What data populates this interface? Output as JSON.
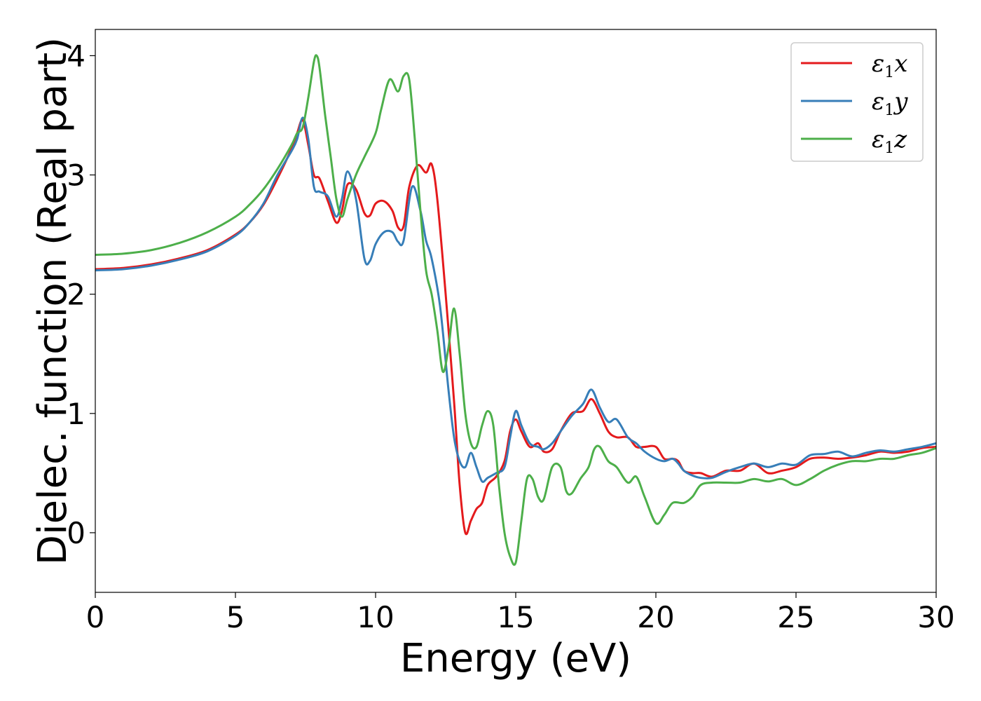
{
  "chart_data": {
    "type": "line",
    "title": "",
    "xlabel": "Energy (eV)",
    "ylabel": "Dielec. function (Real part)",
    "xlim": [
      0,
      30
    ],
    "ylim": [
      -0.5,
      4.22
    ],
    "xticks": [
      0,
      5,
      10,
      15,
      20,
      25,
      30
    ],
    "yticks": [
      0,
      1,
      2,
      3,
      4
    ],
    "xtick_labels": [
      "0",
      "5",
      "10",
      "15",
      "20",
      "25",
      "30"
    ],
    "ytick_labels": [
      "0",
      "1",
      "2",
      "3",
      "4"
    ],
    "grid": false,
    "legend_position": "top-right",
    "series": [
      {
        "name_symbol": "ε",
        "name_sub": "1",
        "name_var": "x",
        "color": "#e41a1c",
        "x": [
          0,
          1,
          2,
          3,
          4,
          5,
          5.5,
          6,
          6.5,
          7,
          7.2,
          7.4,
          7.6,
          7.8,
          8.0,
          8.3,
          8.6,
          8.8,
          9.0,
          9.3,
          9.6,
          9.8,
          10.0,
          10.3,
          10.6,
          10.8,
          11.0,
          11.2,
          11.5,
          11.8,
          12.0,
          12.2,
          12.5,
          12.8,
          13.0,
          13.2,
          13.4,
          13.6,
          13.8,
          14.0,
          14.3,
          14.6,
          14.8,
          15.0,
          15.2,
          15.5,
          15.8,
          16.0,
          16.3,
          16.6,
          17.0,
          17.4,
          17.7,
          18.0,
          18.3,
          18.6,
          19.0,
          19.3,
          19.6,
          20.0,
          20.3,
          20.6,
          20.8,
          21.0,
          21.3,
          21.6,
          22.0,
          22.5,
          23.0,
          23.5,
          24.0,
          24.5,
          25.0,
          25.5,
          26.0,
          26.5,
          27.0,
          27.5,
          28.0,
          28.5,
          29.0,
          29.5,
          30.0
        ],
        "y": [
          2.21,
          2.22,
          2.25,
          2.3,
          2.37,
          2.5,
          2.6,
          2.75,
          2.97,
          3.22,
          3.35,
          3.46,
          3.25,
          3.0,
          2.97,
          2.78,
          2.6,
          2.7,
          2.92,
          2.88,
          2.68,
          2.66,
          2.76,
          2.78,
          2.7,
          2.56,
          2.57,
          2.9,
          3.08,
          3.02,
          3.09,
          2.8,
          2.0,
          1.1,
          0.4,
          0.0,
          0.1,
          0.2,
          0.25,
          0.4,
          0.47,
          0.6,
          0.85,
          0.95,
          0.85,
          0.72,
          0.75,
          0.68,
          0.7,
          0.85,
          1.0,
          1.02,
          1.12,
          1.0,
          0.85,
          0.8,
          0.8,
          0.72,
          0.72,
          0.72,
          0.62,
          0.62,
          0.6,
          0.52,
          0.5,
          0.5,
          0.47,
          0.52,
          0.52,
          0.58,
          0.5,
          0.52,
          0.55,
          0.62,
          0.63,
          0.62,
          0.63,
          0.65,
          0.68,
          0.67,
          0.68,
          0.71,
          0.72
        ]
      },
      {
        "name_symbol": "ε",
        "name_sub": "1",
        "name_var": "y",
        "color": "#377eb8",
        "x": [
          0,
          1,
          2,
          3,
          4,
          5,
          5.5,
          6,
          6.5,
          7,
          7.2,
          7.4,
          7.6,
          7.8,
          8.0,
          8.3,
          8.6,
          8.8,
          9.0,
          9.3,
          9.6,
          9.8,
          10.0,
          10.3,
          10.6,
          10.8,
          11.0,
          11.3,
          11.6,
          11.8,
          12.0,
          12.3,
          12.6,
          12.8,
          13.0,
          13.2,
          13.4,
          13.6,
          13.8,
          14.0,
          14.3,
          14.6,
          14.8,
          15.0,
          15.2,
          15.5,
          15.8,
          16.0,
          16.3,
          16.6,
          17.0,
          17.4,
          17.7,
          18.0,
          18.3,
          18.6,
          19.0,
          19.3,
          19.6,
          20.0,
          20.3,
          20.6,
          20.8,
          21.0,
          21.3,
          21.6,
          22.0,
          22.5,
          23.0,
          23.5,
          24.0,
          24.5,
          25.0,
          25.5,
          26.0,
          26.5,
          27.0,
          27.5,
          28.0,
          28.5,
          29.0,
          29.5,
          30.0
        ],
        "y": [
          2.2,
          2.21,
          2.24,
          2.29,
          2.36,
          2.49,
          2.6,
          2.76,
          3.0,
          3.2,
          3.3,
          3.48,
          3.3,
          2.9,
          2.86,
          2.82,
          2.65,
          2.8,
          3.03,
          2.8,
          2.3,
          2.28,
          2.42,
          2.52,
          2.52,
          2.44,
          2.45,
          2.9,
          2.7,
          2.45,
          2.3,
          1.9,
          1.2,
          0.8,
          0.6,
          0.55,
          0.67,
          0.55,
          0.43,
          0.46,
          0.5,
          0.55,
          0.8,
          1.02,
          0.9,
          0.75,
          0.72,
          0.7,
          0.75,
          0.85,
          0.98,
          1.08,
          1.2,
          1.05,
          0.93,
          0.95,
          0.8,
          0.75,
          0.68,
          0.62,
          0.6,
          0.62,
          0.58,
          0.52,
          0.48,
          0.46,
          0.46,
          0.51,
          0.55,
          0.58,
          0.55,
          0.58,
          0.57,
          0.65,
          0.66,
          0.68,
          0.64,
          0.67,
          0.69,
          0.68,
          0.7,
          0.72,
          0.75
        ]
      },
      {
        "name_symbol": "ε",
        "name_sub": "1",
        "name_var": "z",
        "color": "#4daf4a",
        "x": [
          0,
          1,
          2,
          3,
          4,
          5,
          5.5,
          6,
          6.5,
          7,
          7.2,
          7.4,
          7.6,
          7.8,
          7.9,
          8.0,
          8.2,
          8.4,
          8.6,
          8.8,
          9.0,
          9.3,
          9.6,
          10.0,
          10.2,
          10.5,
          10.8,
          11.0,
          11.2,
          11.4,
          11.6,
          11.8,
          12.0,
          12.2,
          12.4,
          12.6,
          12.8,
          13.0,
          13.2,
          13.4,
          13.6,
          13.8,
          14.0,
          14.2,
          14.4,
          14.6,
          14.8,
          15.0,
          15.2,
          15.4,
          15.6,
          15.8,
          16.0,
          16.3,
          16.6,
          16.8,
          17.0,
          17.3,
          17.6,
          17.8,
          18.0,
          18.3,
          18.6,
          19.0,
          19.3,
          19.6,
          20.0,
          20.3,
          20.6,
          21.0,
          21.3,
          21.6,
          22.0,
          22.5,
          23.0,
          23.5,
          24.0,
          24.5,
          25.0,
          25.5,
          26.0,
          26.5,
          27.0,
          27.5,
          28.0,
          28.5,
          29.0,
          29.5,
          30.0
        ],
        "y": [
          2.33,
          2.34,
          2.37,
          2.43,
          2.52,
          2.65,
          2.75,
          2.88,
          3.05,
          3.25,
          3.35,
          3.4,
          3.65,
          3.95,
          4.0,
          3.9,
          3.5,
          3.15,
          2.8,
          2.65,
          2.8,
          3.0,
          3.15,
          3.35,
          3.55,
          3.8,
          3.7,
          3.83,
          3.8,
          3.3,
          2.7,
          2.2,
          2.0,
          1.7,
          1.35,
          1.55,
          1.88,
          1.5,
          1.0,
          0.75,
          0.72,
          0.9,
          1.02,
          0.9,
          0.4,
          0.0,
          -0.2,
          -0.25,
          0.1,
          0.45,
          0.45,
          0.3,
          0.28,
          0.55,
          0.55,
          0.35,
          0.33,
          0.45,
          0.55,
          0.7,
          0.72,
          0.6,
          0.55,
          0.42,
          0.47,
          0.3,
          0.08,
          0.15,
          0.25,
          0.25,
          0.3,
          0.4,
          0.42,
          0.42,
          0.42,
          0.45,
          0.43,
          0.45,
          0.4,
          0.45,
          0.52,
          0.57,
          0.6,
          0.6,
          0.62,
          0.62,
          0.65,
          0.67,
          0.71
        ]
      }
    ]
  }
}
